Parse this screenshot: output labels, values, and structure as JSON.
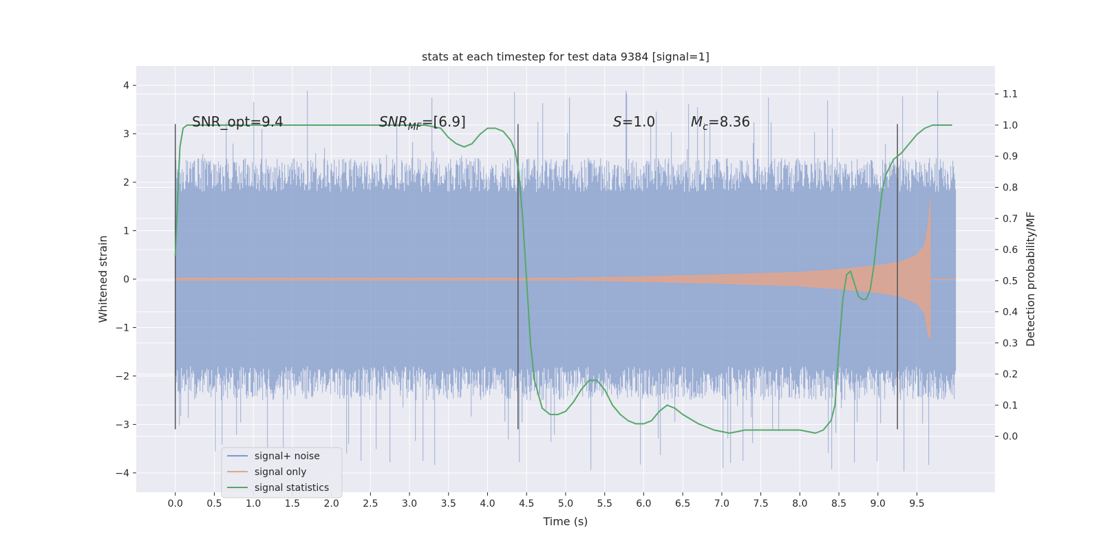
{
  "chart_data": {
    "type": "line",
    "title": "stats at each timestep for test data 9384 [signal=1]",
    "xlabel": "Time (s)",
    "ylabel_left": "Whitened strain",
    "ylabel_right": "Detection probability/MF",
    "xlim": [
      -0.5,
      10.5
    ],
    "ylim_left": [
      -4.4,
      4.4
    ],
    "ylim_right": [
      -0.18,
      1.19
    ],
    "x_ticks": [
      0.0,
      0.5,
      1.0,
      1.5,
      2.0,
      2.5,
      3.0,
      3.5,
      4.0,
      4.5,
      5.0,
      5.5,
      6.0,
      6.5,
      7.0,
      7.5,
      8.0,
      8.5,
      9.0,
      9.5
    ],
    "x_tick_labels": [
      "0.0",
      "0.5",
      "1.0",
      "1.5",
      "2.0",
      "2.5",
      "3.0",
      "3.5",
      "4.0",
      "4.5",
      "5.0",
      "5.5",
      "6.0",
      "6.5",
      "7.0",
      "7.5",
      "8.0",
      "8.5",
      "9.0",
      "9.5"
    ],
    "y_left_ticks": [
      -4,
      -3,
      -2,
      -1,
      0,
      1,
      2,
      3,
      4
    ],
    "y_left_tick_labels": [
      "−4",
      "−3",
      "−2",
      "−1",
      "0",
      "1",
      "2",
      "3",
      "4"
    ],
    "y_right_ticks": [
      0.0,
      0.1,
      0.2,
      0.3,
      0.4,
      0.5,
      0.6,
      0.7,
      0.8,
      0.9,
      1.0,
      1.1
    ],
    "y_right_tick_labels": [
      "0.0",
      "0.1",
      "0.2",
      "0.3",
      "0.4",
      "0.5",
      "0.6",
      "0.7",
      "0.8",
      "0.9",
      "1.0",
      "1.1"
    ],
    "grid": true,
    "legend_position": "lower-left",
    "series": [
      {
        "name": "signal+ noise",
        "axis": "left",
        "color": "#7f98c8",
        "kind": "noise",
        "x_range": [
          0.0,
          10.0
        ],
        "typical_abs_max": 2.5,
        "extreme_abs_max": 4.0
      },
      {
        "name": "signal only",
        "axis": "left",
        "color": "#e3a58b",
        "kind": "chirp",
        "envelope": {
          "t": [
            0.0,
            5.0,
            6.0,
            7.0,
            8.0,
            8.5,
            9.0,
            9.3,
            9.5,
            9.6,
            9.65,
            9.67
          ],
          "amp": [
            0.02,
            0.02,
            0.05,
            0.09,
            0.14,
            0.2,
            0.28,
            0.36,
            0.5,
            0.7,
            1.2,
            1.65
          ]
        },
        "negative_extreme": -1.2
      },
      {
        "name": "signal statistics",
        "axis": "right",
        "color": "#55a868",
        "kind": "line",
        "x": [
          0.0,
          0.03,
          0.06,
          0.1,
          0.15,
          0.25,
          0.4,
          0.7,
          1.0,
          2.0,
          3.0,
          3.2,
          3.4,
          3.5,
          3.6,
          3.7,
          3.8,
          3.9,
          4.0,
          4.1,
          4.2,
          4.3,
          4.35,
          4.4,
          4.45,
          4.5,
          4.55,
          4.6,
          4.7,
          4.8,
          4.9,
          5.0,
          5.1,
          5.2,
          5.3,
          5.4,
          5.5,
          5.6,
          5.7,
          5.8,
          5.9,
          6.0,
          6.1,
          6.2,
          6.3,
          6.4,
          6.5,
          6.7,
          6.9,
          7.1,
          7.3,
          7.5,
          7.7,
          7.9,
          8.0,
          8.2,
          8.3,
          8.4,
          8.45,
          8.5,
          8.55,
          8.6,
          8.65,
          8.7,
          8.75,
          8.8,
          8.85,
          8.9,
          8.95,
          9.0,
          9.05,
          9.1,
          9.2,
          9.3,
          9.4,
          9.5,
          9.6,
          9.7,
          9.8,
          9.9,
          9.95
        ],
        "y": [
          0.58,
          0.76,
          0.93,
          0.99,
          1.0,
          1.0,
          1.0,
          1.0,
          1.0,
          1.0,
          1.0,
          1.0,
          0.99,
          0.96,
          0.94,
          0.93,
          0.94,
          0.97,
          0.99,
          0.99,
          0.98,
          0.95,
          0.92,
          0.85,
          0.7,
          0.5,
          0.3,
          0.18,
          0.09,
          0.07,
          0.07,
          0.08,
          0.11,
          0.15,
          0.18,
          0.18,
          0.15,
          0.1,
          0.07,
          0.05,
          0.04,
          0.04,
          0.05,
          0.08,
          0.1,
          0.09,
          0.07,
          0.04,
          0.02,
          0.01,
          0.02,
          0.02,
          0.02,
          0.02,
          0.02,
          0.01,
          0.02,
          0.05,
          0.1,
          0.28,
          0.44,
          0.52,
          0.53,
          0.49,
          0.45,
          0.44,
          0.44,
          0.47,
          0.55,
          0.67,
          0.78,
          0.84,
          0.89,
          0.91,
          0.94,
          0.97,
          0.99,
          1.0,
          1.0,
          1.0,
          1.0
        ]
      }
    ],
    "vertical_lines": [
      0.0,
      4.39,
      9.25
    ],
    "vertical_line_range_left": [
      -3.1,
      3.2
    ],
    "vertical_line_color": "#555555",
    "annotations": {
      "snr_opt": "SNR_opt=9.4",
      "snr_mf_base": "SNR",
      "snr_mf_sub": "MF",
      "snr_mf_rest": "=[6.9]",
      "s_base": "S",
      "s_rest": "=1.0",
      "mc_base": "M",
      "mc_sub": "c",
      "mc_rest": "=8.36"
    },
    "legend": [
      {
        "label": "signal+ noise",
        "color": "#7f98c8"
      },
      {
        "label": "signal only",
        "color": "#e3a58b"
      },
      {
        "label": "signal statistics",
        "color": "#55a868"
      }
    ],
    "colors": {
      "plot_background": "#eaeaf2",
      "grid": "#ffffff"
    }
  }
}
